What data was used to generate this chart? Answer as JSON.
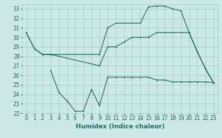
{
  "xlabel": "Humidex (Indice chaleur)",
  "xlim": [
    -0.5,
    23.5
  ],
  "ylim": [
    22,
    33.5
  ],
  "yticks": [
    22,
    23,
    24,
    25,
    26,
    27,
    28,
    29,
    30,
    31,
    32,
    33
  ],
  "xticks": [
    0,
    1,
    2,
    3,
    4,
    5,
    6,
    7,
    8,
    9,
    10,
    11,
    12,
    13,
    14,
    15,
    16,
    17,
    18,
    19,
    20,
    21,
    22,
    23
  ],
  "bg_color": "#cde8e8",
  "grid_color": "#a0c8c8",
  "line_color": "#1a6b6b",
  "line1_x": [
    0,
    1,
    2,
    3,
    9,
    10,
    11,
    12,
    13,
    14,
    15,
    16,
    17,
    18,
    19,
    20,
    21,
    22,
    23
  ],
  "line1_y": [
    30.5,
    28.8,
    28.2,
    28.2,
    28.2,
    31.0,
    31.5,
    31.5,
    31.5,
    31.5,
    33.2,
    33.3,
    33.3,
    33.0,
    32.8,
    30.5,
    28.5,
    26.7,
    25.2
  ],
  "line2_x": [
    0,
    1,
    2,
    3,
    9,
    10,
    11,
    12,
    13,
    14,
    15,
    16,
    17,
    18,
    19,
    20,
    21,
    22,
    23
  ],
  "line2_y": [
    30.5,
    28.8,
    28.2,
    28.2,
    27.0,
    29.0,
    29.0,
    29.5,
    30.0,
    30.0,
    30.0,
    30.5,
    30.5,
    30.5,
    30.5,
    30.5,
    28.5,
    26.7,
    25.2
  ],
  "line3_x": [
    3,
    4,
    5,
    6,
    7,
    8,
    9,
    10,
    11,
    12,
    13,
    14,
    15,
    16,
    17,
    18,
    19,
    20,
    21,
    22,
    23
  ],
  "line3_y": [
    26.5,
    24.2,
    23.3,
    22.2,
    22.2,
    24.5,
    22.8,
    25.8,
    25.8,
    25.8,
    25.8,
    25.8,
    25.8,
    25.5,
    25.5,
    25.3,
    25.3,
    25.3,
    25.3,
    25.3,
    25.2
  ]
}
